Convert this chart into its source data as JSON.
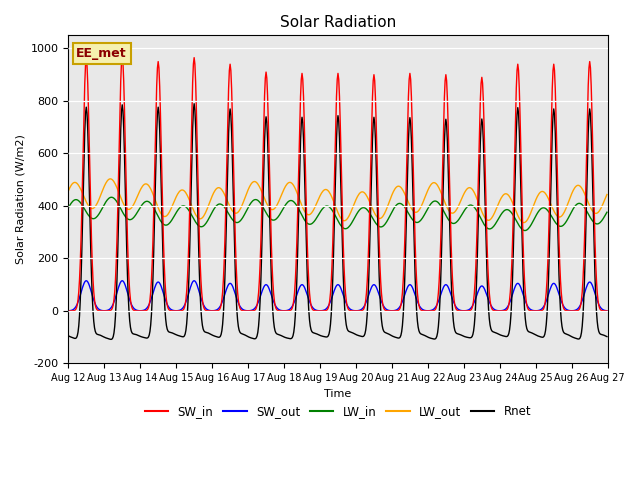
{
  "title": "Solar Radiation",
  "ylabel": "Solar Radiation (W/m2)",
  "xlabel": "Time",
  "ylim": [
    -200,
    1050
  ],
  "xlim": [
    0,
    360
  ],
  "background_color": "#e8e8e8",
  "legend_label": "EE_met",
  "series": {
    "SW_in": {
      "color": "red",
      "label": "SW_in"
    },
    "SW_out": {
      "color": "blue",
      "label": "SW_out"
    },
    "LW_in": {
      "color": "green",
      "label": "LW_in"
    },
    "LW_out": {
      "color": "orange",
      "label": "LW_out"
    },
    "Rnet": {
      "color": "black",
      "label": "Rnet"
    }
  },
  "xtick_labels": [
    "Aug 12",
    "Aug 13",
    "Aug 14",
    "Aug 15",
    "Aug 16",
    "Aug 17",
    "Aug 18",
    "Aug 19",
    "Aug 20",
    "Aug 21",
    "Aug 22",
    "Aug 23",
    "Aug 24",
    "Aug 25",
    "Aug 26",
    "Aug 27"
  ],
  "xtick_positions": [
    0,
    24,
    48,
    72,
    96,
    120,
    144,
    168,
    192,
    216,
    240,
    264,
    288,
    312,
    336,
    360
  ],
  "ytick_labels": [
    "-200",
    "0",
    "200",
    "400",
    "600",
    "800",
    "1000"
  ],
  "ytick_values": [
    -200,
    0,
    200,
    400,
    600,
    800,
    1000
  ],
  "n_days": 15,
  "hours_per_day": 24,
  "SW_in_peaks": [
    960,
    970,
    950,
    965,
    940,
    910,
    905,
    905,
    900,
    905,
    900,
    890,
    940,
    940,
    950
  ],
  "SW_out_peaks": [
    115,
    115,
    110,
    115,
    105,
    100,
    100,
    100,
    100,
    100,
    100,
    95,
    105,
    105,
    110
  ],
  "LW_in_base": 380,
  "LW_in_amp": 40,
  "LW_out_base": 430,
  "LW_out_amp": 55,
  "Rnet_night": -80
}
